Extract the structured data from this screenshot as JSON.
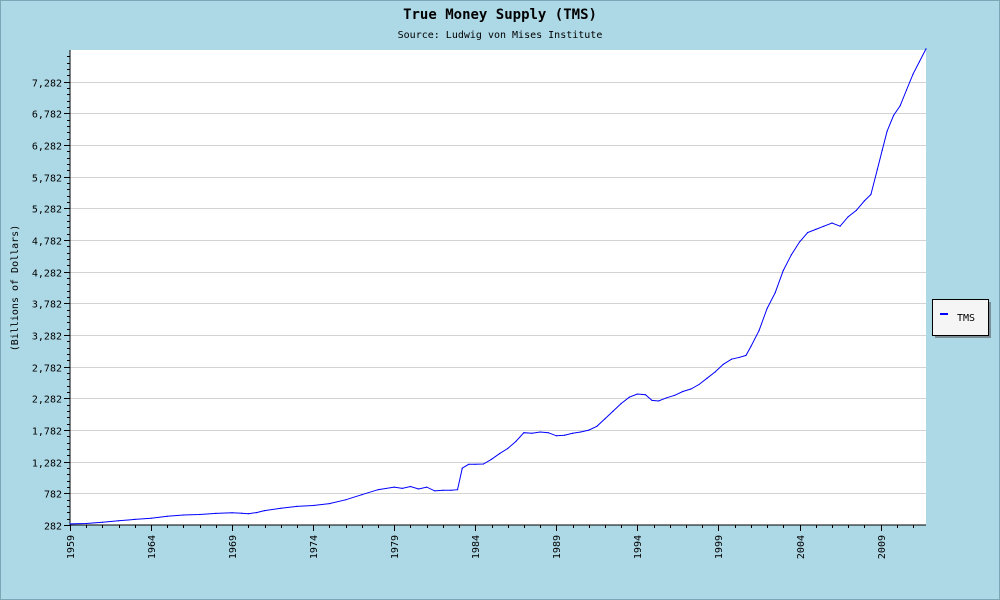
{
  "chart_data": {
    "type": "line",
    "title": "True Money Supply (TMS)",
    "subtitle": "Source: Ludwig von Mises Institute",
    "xlabel": "",
    "ylabel": "(Billions of Dollars)",
    "xlim": [
      1959,
      2011.8
    ],
    "ylim": [
      282,
      7782
    ],
    "x_ticks": [
      "1959",
      "1964",
      "1969",
      "1974",
      "1979",
      "1984",
      "1989",
      "1994",
      "1999",
      "2004",
      "2009"
    ],
    "y_ticks": [
      "282",
      "782",
      "1,282",
      "1,782",
      "2,282",
      "2,782",
      "3,282",
      "3,782",
      "4,282",
      "4,782",
      "5,282",
      "5,782",
      "6,282",
      "6,782",
      "7,282"
    ],
    "legend": {
      "position": "right",
      "entries": [
        "TMS"
      ]
    },
    "series": [
      {
        "name": "TMS",
        "color": "#0000ff",
        "x": [
          1959.0,
          1960.0,
          1961.0,
          1962.0,
          1963.0,
          1964.0,
          1965.0,
          1966.0,
          1967.0,
          1968.0,
          1969.0,
          1969.6,
          1970.0,
          1970.5,
          1971.0,
          1972.0,
          1973.0,
          1974.0,
          1975.0,
          1976.0,
          1977.0,
          1978.0,
          1979.0,
          1979.5,
          1980.0,
          1980.5,
          1981.0,
          1981.5,
          1982.0,
          1982.5,
          1982.9,
          1983.2,
          1983.6,
          1984.0,
          1984.5,
          1985.0,
          1985.5,
          1986.0,
          1986.5,
          1987.0,
          1987.5,
          1988.0,
          1988.5,
          1989.0,
          1989.5,
          1990.0,
          1990.5,
          1991.0,
          1991.5,
          1992.0,
          1992.5,
          1993.0,
          1993.5,
          1994.0,
          1994.5,
          1994.9,
          1995.3,
          1995.8,
          1996.3,
          1996.8,
          1997.3,
          1997.8,
          1998.3,
          1998.8,
          1999.3,
          1999.8,
          2000.3,
          2000.7,
          2001.0,
          2001.5,
          2002.0,
          2002.5,
          2003.0,
          2003.5,
          2004.0,
          2004.5,
          2005.0,
          2005.5,
          2006.0,
          2006.5,
          2007.0,
          2007.5,
          2008.0,
          2008.4,
          2008.8,
          2009.1,
          2009.4,
          2009.8,
          2010.2,
          2010.6,
          2011.0,
          2011.4,
          2011.8
        ],
        "y": [
          300,
          305,
          325,
          348,
          370,
          390,
          420,
          440,
          448,
          465,
          475,
          468,
          460,
          478,
          510,
          545,
          575,
          590,
          620,
          680,
          760,
          840,
          880,
          860,
          890,
          850,
          880,
          820,
          830,
          830,
          840,
          1180,
          1240,
          1240,
          1245,
          1320,
          1410,
          1490,
          1600,
          1740,
          1730,
          1750,
          1740,
          1690,
          1700,
          1730,
          1750,
          1780,
          1840,
          1960,
          2080,
          2200,
          2300,
          2350,
          2340,
          2250,
          2240,
          2290,
          2330,
          2390,
          2430,
          2500,
          2600,
          2700,
          2820,
          2900,
          2930,
          2960,
          3100,
          3350,
          3700,
          3950,
          4300,
          4550,
          4750,
          4900,
          4950,
          5000,
          5050,
          5000,
          5150,
          5250,
          5400,
          5500,
          5900,
          6200,
          6500,
          6750,
          6900,
          7150,
          7400,
          7600,
          7800
        ]
      }
    ]
  }
}
